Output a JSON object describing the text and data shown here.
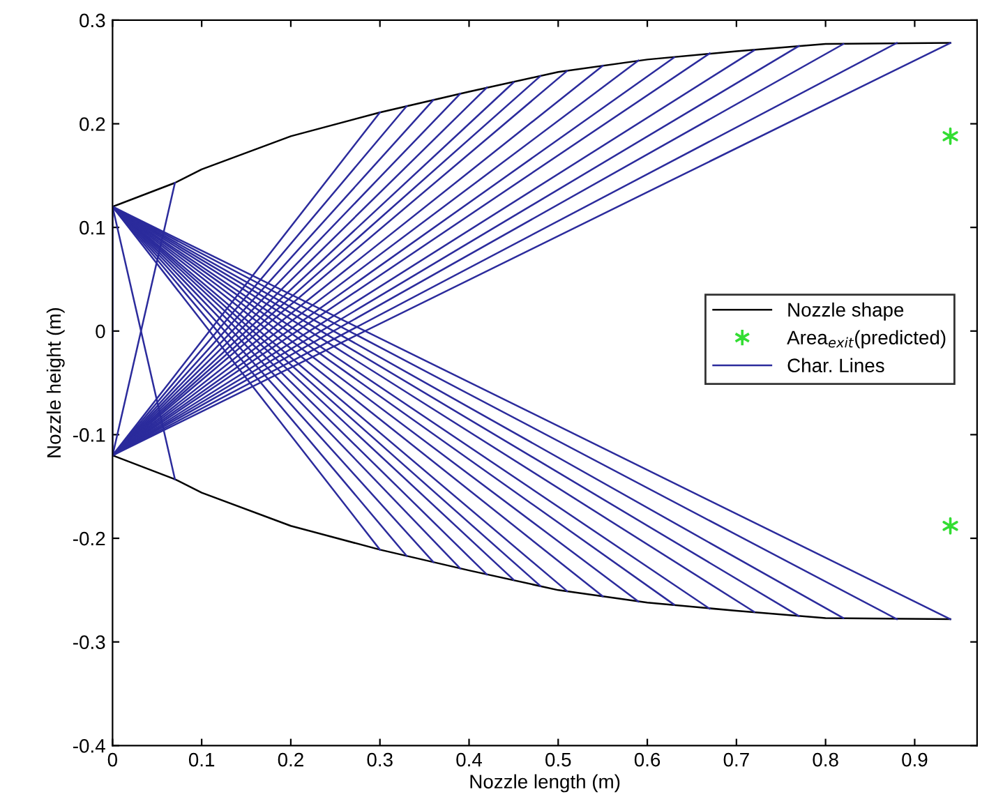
{
  "chart_data": {
    "type": "line",
    "xlabel": "Nozzle length (m)",
    "ylabel": "Nozzle height (m)",
    "xlim": [
      0,
      0.97
    ],
    "ylim": [
      -0.4,
      0.3
    ],
    "xticks": [
      0,
      0.1,
      0.2,
      0.3,
      0.4,
      0.5,
      0.6,
      0.7,
      0.8,
      0.9
    ],
    "yticks": [
      -0.4,
      -0.3,
      -0.2,
      -0.1,
      0,
      0.1,
      0.2,
      0.3
    ],
    "grid": false,
    "legend": "right",
    "marker": "none",
    "line_style": "solid",
    "series": [
      {
        "name": "Nozzle shape",
        "color": "#000000",
        "x": [
          0,
          0.07,
          0.1,
          0.2,
          0.3,
          0.4,
          0.5,
          0.6,
          0.7,
          0.8,
          0.94
        ],
        "values": [
          0.12,
          0.143,
          0.156,
          0.188,
          0.211,
          0.231,
          0.25,
          0.262,
          0.27,
          0.277,
          0.278
        ]
      },
      {
        "color": "#000000",
        "x": [
          0,
          0.07,
          0.1,
          0.2,
          0.3,
          0.4,
          0.5,
          0.6,
          0.7,
          0.8,
          0.94
        ],
        "values": [
          -0.12,
          -0.143,
          -0.156,
          -0.188,
          -0.211,
          -0.231,
          -0.25,
          -0.262,
          -0.27,
          -0.277,
          -0.278
        ]
      },
      {
        "name": "Area$_{exit}$(predicted)",
        "type": "scatter",
        "color": "#33dd33",
        "marker": "cross",
        "x": [
          0.94,
          0.94
        ],
        "values": [
          0.188,
          -0.188
        ]
      },
      {
        "name": "Char. Lines",
        "color": "#2b2b9c",
        "x": [
          0,
          0
        ],
        "values": [
          -0.12,
          0.12
        ]
      },
      {
        "color": "#2b2b9c",
        "x": [
          0,
          0.07
        ],
        "values": [
          -0.12,
          0.143
        ]
      },
      {
        "color": "#2b2b9c",
        "x": [
          0,
          0.3
        ],
        "values": [
          -0.12,
          0.211
        ]
      },
      {
        "color": "#2b2b9c",
        "x": [
          0,
          0.33
        ],
        "values": [
          -0.12,
          0.217
        ]
      },
      {
        "color": "#2b2b9c",
        "x": [
          0,
          0.36
        ],
        "values": [
          -0.12,
          0.223
        ]
      },
      {
        "color": "#2b2b9c",
        "x": [
          0,
          0.39
        ],
        "values": [
          -0.12,
          0.229
        ]
      },
      {
        "color": "#2b2b9c",
        "x": [
          0,
          0.42
        ],
        "values": [
          -0.12,
          0.235
        ]
      },
      {
        "color": "#2b2b9c",
        "x": [
          0,
          0.45
        ],
        "values": [
          -0.12,
          0.24
        ]
      },
      {
        "color": "#2b2b9c",
        "x": [
          0,
          0.48
        ],
        "values": [
          -0.12,
          0.246
        ]
      },
      {
        "color": "#2b2b9c",
        "x": [
          0,
          0.51
        ],
        "values": [
          -0.12,
          0.251
        ]
      },
      {
        "color": "#2b2b9c",
        "x": [
          0,
          0.55
        ],
        "values": [
          -0.12,
          0.256
        ]
      },
      {
        "color": "#2b2b9c",
        "x": [
          0,
          0.59
        ],
        "values": [
          -0.12,
          0.261
        ]
      },
      {
        "color": "#2b2b9c",
        "x": [
          0,
          0.63
        ],
        "values": [
          -0.12,
          0.264
        ]
      },
      {
        "color": "#2b2b9c",
        "x": [
          0,
          0.67
        ],
        "values": [
          -0.12,
          0.268
        ]
      },
      {
        "color": "#2b2b9c",
        "x": [
          0,
          0.72
        ],
        "values": [
          -0.12,
          0.271
        ]
      },
      {
        "color": "#2b2b9c",
        "x": [
          0,
          0.77
        ],
        "values": [
          -0.12,
          0.275
        ]
      },
      {
        "color": "#2b2b9c",
        "x": [
          0,
          0.82
        ],
        "values": [
          -0.12,
          0.277
        ]
      },
      {
        "color": "#2b2b9c",
        "x": [
          0,
          0.88
        ],
        "values": [
          -0.12,
          0.278
        ]
      },
      {
        "color": "#2b2b9c",
        "x": [
          0,
          0.94
        ],
        "values": [
          -0.12,
          0.278
        ]
      },
      {
        "color": "#2b2b9c",
        "x": [
          0,
          0.07
        ],
        "values": [
          0.12,
          -0.143
        ]
      },
      {
        "color": "#2b2b9c",
        "x": [
          0,
          0.3
        ],
        "values": [
          0.12,
          -0.211
        ]
      },
      {
        "color": "#2b2b9c",
        "x": [
          0,
          0.33
        ],
        "values": [
          0.12,
          -0.217
        ]
      },
      {
        "color": "#2b2b9c",
        "x": [
          0,
          0.36
        ],
        "values": [
          0.12,
          -0.223
        ]
      },
      {
        "color": "#2b2b9c",
        "x": [
          0,
          0.39
        ],
        "values": [
          0.12,
          -0.229
        ]
      },
      {
        "color": "#2b2b9c",
        "x": [
          0,
          0.42
        ],
        "values": [
          0.12,
          -0.235
        ]
      },
      {
        "color": "#2b2b9c",
        "x": [
          0,
          0.45
        ],
        "values": [
          0.12,
          -0.24
        ]
      },
      {
        "color": "#2b2b9c",
        "x": [
          0,
          0.48
        ],
        "values": [
          0.12,
          -0.246
        ]
      },
      {
        "color": "#2b2b9c",
        "x": [
          0,
          0.51
        ],
        "values": [
          0.12,
          -0.251
        ]
      },
      {
        "color": "#2b2b9c",
        "x": [
          0,
          0.55
        ],
        "values": [
          0.12,
          -0.256
        ]
      },
      {
        "color": "#2b2b9c",
        "x": [
          0,
          0.59
        ],
        "values": [
          0.12,
          -0.261
        ]
      },
      {
        "color": "#2b2b9c",
        "x": [
          0,
          0.63
        ],
        "values": [
          0.12,
          -0.264
        ]
      },
      {
        "color": "#2b2b9c",
        "x": [
          0,
          0.67
        ],
        "values": [
          0.12,
          -0.268
        ]
      },
      {
        "color": "#2b2b9c",
        "x": [
          0,
          0.72
        ],
        "values": [
          0.12,
          -0.271
        ]
      },
      {
        "color": "#2b2b9c",
        "x": [
          0,
          0.77
        ],
        "values": [
          0.12,
          -0.275
        ]
      },
      {
        "color": "#2b2b9c",
        "x": [
          0,
          0.82
        ],
        "values": [
          0.12,
          -0.277
        ]
      },
      {
        "color": "#2b2b9c",
        "x": [
          0,
          0.88
        ],
        "values": [
          0.12,
          -0.278
        ]
      },
      {
        "color": "#2b2b9c",
        "x": [
          0,
          0.94
        ],
        "values": [
          0.12,
          -0.278
        ]
      }
    ]
  }
}
